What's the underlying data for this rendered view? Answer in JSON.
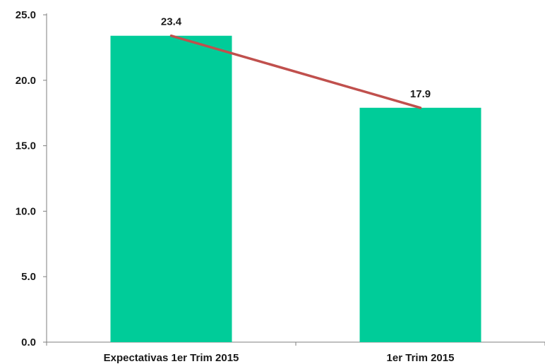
{
  "chart_data": {
    "type": "bar",
    "categories": [
      "Expectativas 1er Trim 2015",
      "1er Trim 2015"
    ],
    "values": [
      23.4,
      17.9
    ],
    "data_labels": [
      "23.4",
      "17.9"
    ],
    "ylim": [
      0,
      25
    ],
    "y_ticks": [
      0,
      5,
      10,
      15,
      20,
      25
    ],
    "y_tick_labels": [
      "0.0",
      "5.0",
      "10.0",
      "15.0",
      "20.0",
      "25.0"
    ],
    "title": "",
    "xlabel": "",
    "ylabel": "",
    "grid": false,
    "overlay_line": true,
    "colors": {
      "bar": "#00CC99",
      "line": "#C0504D",
      "axis": "#7f7f7f"
    }
  }
}
